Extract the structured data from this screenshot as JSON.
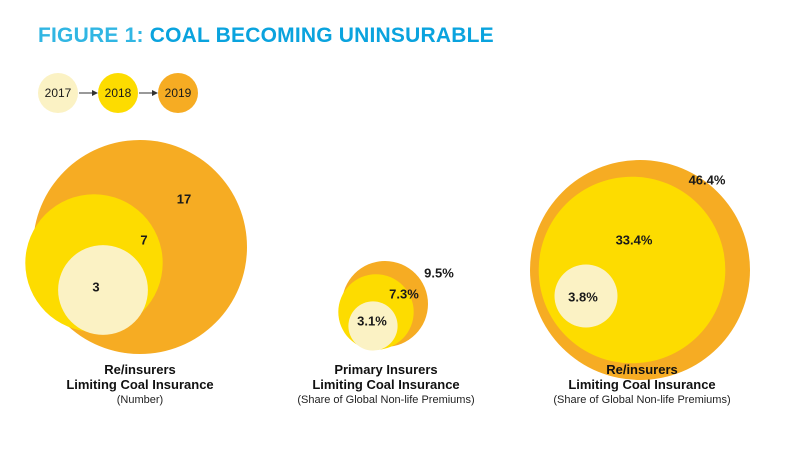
{
  "title": {
    "prefix": "FIGURE 1:",
    "main": "COAL BECOMING UNINSURABLE"
  },
  "legend": [
    {
      "label": "2017",
      "color": "#fbf2c4"
    },
    {
      "label": "2018",
      "color": "#fddc00"
    },
    {
      "label": "2019",
      "color": "#f6ac23"
    }
  ],
  "chart_data": [
    {
      "type": "bubble",
      "series_years": [
        "2017",
        "2018",
        "2019"
      ],
      "values": [
        3,
        7,
        17
      ],
      "labels": [
        "3",
        "7",
        "17"
      ],
      "caption": [
        "Re/insurers",
        "Limiting Coal Insurance",
        "(Number)"
      ]
    },
    {
      "type": "bubble",
      "series_years": [
        "2017",
        "2018",
        "2019"
      ],
      "values": [
        3.1,
        7.3,
        9.5
      ],
      "labels": [
        "3.1%",
        "7.3%",
        "9.5%"
      ],
      "caption": [
        "Primary Insurers",
        "Limiting Coal Insurance",
        "(Share of Global Non-life Premiums)"
      ]
    },
    {
      "type": "bubble",
      "series_years": [
        "2017",
        "2018",
        "2019"
      ],
      "values": [
        3.8,
        33.4,
        46.4
      ],
      "labels": [
        "3.8%",
        "33.4%",
        "46.4%"
      ],
      "caption": [
        "Re/insurers",
        "Limiting Coal Insurance",
        "(Share of Global Non-life Premiums)"
      ]
    }
  ]
}
